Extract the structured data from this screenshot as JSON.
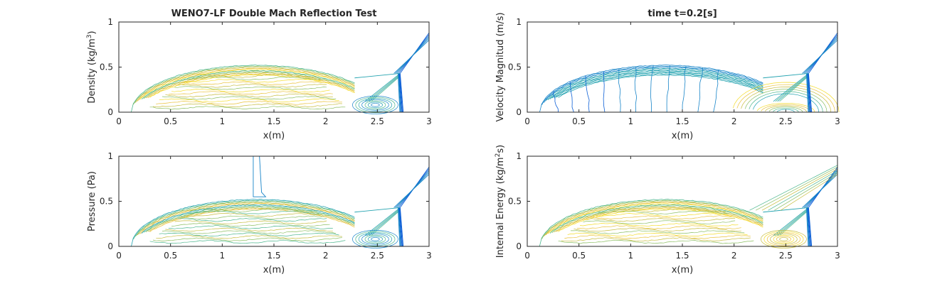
{
  "figure": {
    "title_left": "WENO7-LF Double Mach Reflection Test",
    "title_right": "time t=0.2[s]"
  },
  "colors": {
    "axis": "#262626",
    "contour_palette": [
      "#0c5fd6",
      "#1784c8",
      "#24a3b0",
      "#4cb78e",
      "#8cbf62",
      "#c6bc3e",
      "#eac23a",
      "#f4dc2c"
    ]
  },
  "chart_data": [
    {
      "type": "contour",
      "title": "WENO7-LF Double Mach Reflection Test",
      "xlabel": "x(m)",
      "ylabel": "Density (kg/m³)",
      "ylabel_parts": {
        "base": "Density (kg/m",
        "sup": "3",
        "end": ")"
      },
      "xlim": [
        0,
        3
      ],
      "ylim": [
        0,
        1
      ],
      "xticks": [
        "0",
        "0.5",
        "1",
        "1.5",
        "2",
        "2.5",
        "3"
      ],
      "yticks": [
        "0",
        "0.5",
        "1"
      ],
      "features": {
        "bow_shock_peak": [
          1.45,
          0.52
        ],
        "mach_stem_x": 2.75,
        "triple_point": [
          2.72,
          0.43
        ],
        "incident_shock_top_x": 3.0
      }
    },
    {
      "type": "contour",
      "title": "time t=0.2[s]",
      "xlabel": "x(m)",
      "ylabel": "Velocity Magnitud (m/s)",
      "xlim": [
        0,
        3
      ],
      "ylim": [
        0,
        1
      ],
      "xticks": [
        "0",
        "0.5",
        "1",
        "1.5",
        "2",
        "2.5",
        "3"
      ],
      "yticks": [
        "0",
        "0.5",
        "1"
      ],
      "features": {
        "bow_shock_peak": [
          1.45,
          0.52
        ],
        "mach_stem_x": 2.75,
        "triple_point": [
          2.72,
          0.43
        ]
      }
    },
    {
      "type": "contour",
      "title": "",
      "xlabel": "x(m)",
      "ylabel": "Pressure (Pa)",
      "xlim": [
        0,
        3
      ],
      "ylim": [
        0,
        1
      ],
      "xticks": [
        "0",
        "0.5",
        "1",
        "1.5",
        "2",
        "2.5",
        "3"
      ],
      "yticks": [
        "0",
        "0.5",
        "1"
      ],
      "features": {
        "bow_shock_peak": [
          1.45,
          0.52
        ],
        "mach_stem_x": 2.75,
        "triple_point": [
          2.72,
          0.43
        ]
      }
    },
    {
      "type": "contour",
      "title": "",
      "xlabel": "x(m)",
      "ylabel": "Internal Energy (kg/m²s)",
      "ylabel_parts": {
        "base": "Internal Energy (kg/m",
        "sup": "2",
        "end": "s)"
      },
      "xlim": [
        0,
        3
      ],
      "ylim": [
        0,
        1
      ],
      "xticks": [
        "0",
        "0.5",
        "1",
        "1.5",
        "2",
        "2.5",
        "3"
      ],
      "yticks": [
        "0",
        "0.5",
        "1"
      ],
      "features": {
        "bow_shock_peak": [
          1.45,
          0.52
        ],
        "mach_stem_x": 2.75,
        "triple_point": [
          2.72,
          0.43
        ]
      }
    }
  ]
}
